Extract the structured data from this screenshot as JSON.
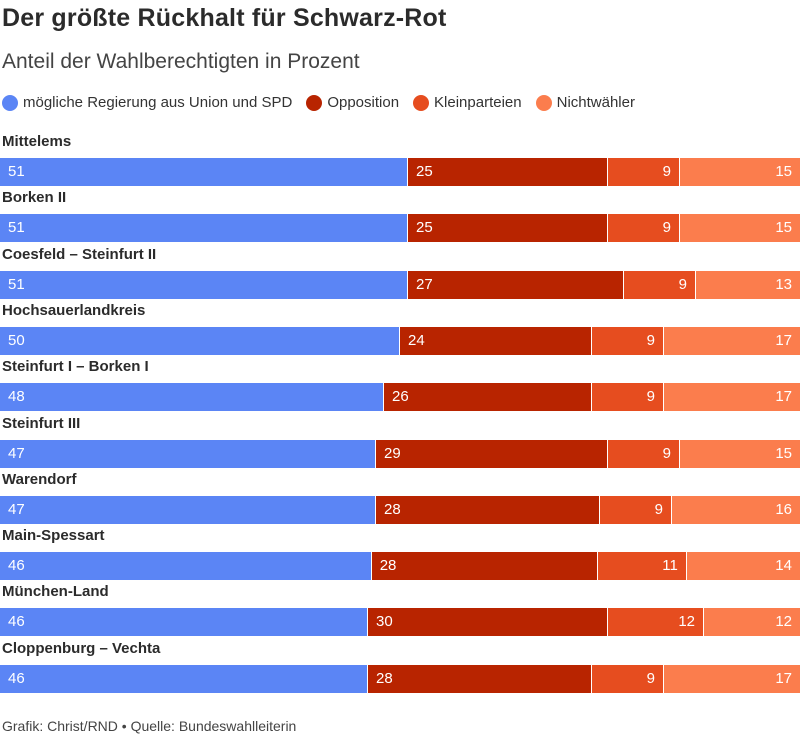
{
  "header": {
    "title": "Der größte Rückhalt für Schwarz-Rot",
    "subtitle": "Anteil der Wahlberechtigten in Prozent"
  },
  "footer": {
    "source": "Grafik: Christ/RND • Quelle: Bundeswahlleiterin"
  },
  "chart_data": {
    "type": "bar",
    "orientation": "horizontal",
    "stacked": true,
    "normalized": true,
    "title": "Der größte Rückhalt für Schwarz-Rot",
    "subtitle": "Anteil der Wahlberechtigten in Prozent",
    "legend_position": "top-left",
    "grid": false,
    "categories": [
      "Mittelems",
      "Borken II",
      "Coesfeld – Steinfurt II",
      "Hochsauerlandkreis",
      "Steinfurt I – Borken I",
      "Steinfurt III",
      "Warendorf",
      "Main-Spessart",
      "München-Land",
      "Cloppenburg – Vechta"
    ],
    "series": [
      {
        "name": "mögliche Regierung aus Union und SPD",
        "color": "#5b85f5",
        "values": [
          51,
          51,
          51,
          50,
          48,
          47,
          47,
          46,
          46,
          46
        ]
      },
      {
        "name": "Opposition",
        "color": "#b82400",
        "values": [
          25,
          25,
          27,
          24,
          26,
          29,
          28,
          28,
          30,
          28
        ]
      },
      {
        "name": "Kleinparteien",
        "color": "#e64d1f",
        "values": [
          9,
          9,
          9,
          9,
          9,
          9,
          9,
          11,
          12,
          9
        ]
      },
      {
        "name": "Nichtwähler",
        "color": "#fb7d4d",
        "values": [
          15,
          15,
          13,
          17,
          17,
          15,
          16,
          14,
          12,
          17
        ]
      }
    ]
  }
}
